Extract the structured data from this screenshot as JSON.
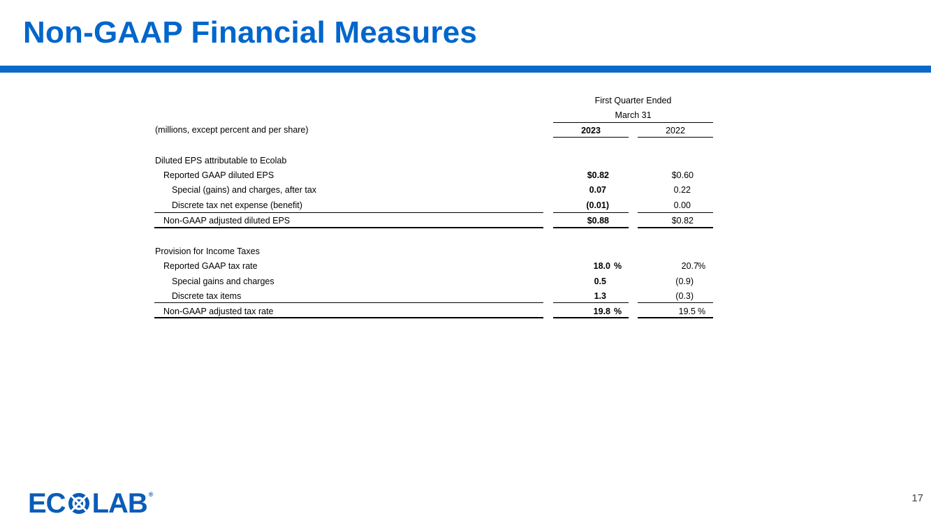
{
  "slide": {
    "title": "Non-GAAP Financial Measures",
    "page_number": "17",
    "accent_color": "#0a69c9"
  },
  "table": {
    "period_header_line1": "First Quarter Ended",
    "period_header_line2": "March 31",
    "units_label": "(millions, except percent and per share)",
    "col_2023": "2023",
    "col_2022": "2022",
    "eps_section": "Diluted EPS attributable to Ecolab",
    "eps_rows": [
      {
        "label": "Reported GAAP diluted EPS",
        "v2023": "$0.82",
        "v2022": "$0.60"
      },
      {
        "label": "Special (gains) and charges, after tax",
        "v2023": "0.07",
        "v2022": "0.22"
      },
      {
        "label": "Discrete tax net expense (benefit)",
        "v2023": "(0.01)",
        "v2022": "0.00"
      },
      {
        "label": "Non-GAAP adjusted diluted EPS",
        "v2023": "$0.88",
        "v2022": "$0.82"
      }
    ],
    "tax_section": "Provision for Income Taxes",
    "tax_rows": [
      {
        "label": "Reported GAAP tax rate",
        "v2023": "18.0",
        "v2022": "20.7",
        "pct": "%"
      },
      {
        "label": "Special gains and charges",
        "v2023": "0.5",
        "v2022": "(0.9)"
      },
      {
        "label": "Discrete tax items",
        "v2023": "1.3",
        "v2022": "(0.3)"
      },
      {
        "label": "Non-GAAP adjusted tax rate",
        "v2023": "19.8",
        "v2022": "19.5",
        "pct": "%"
      }
    ]
  },
  "logo": {
    "text_left": "EC",
    "text_right": "LAB",
    "registered": "®",
    "brand_color": "#0a5cb8"
  }
}
